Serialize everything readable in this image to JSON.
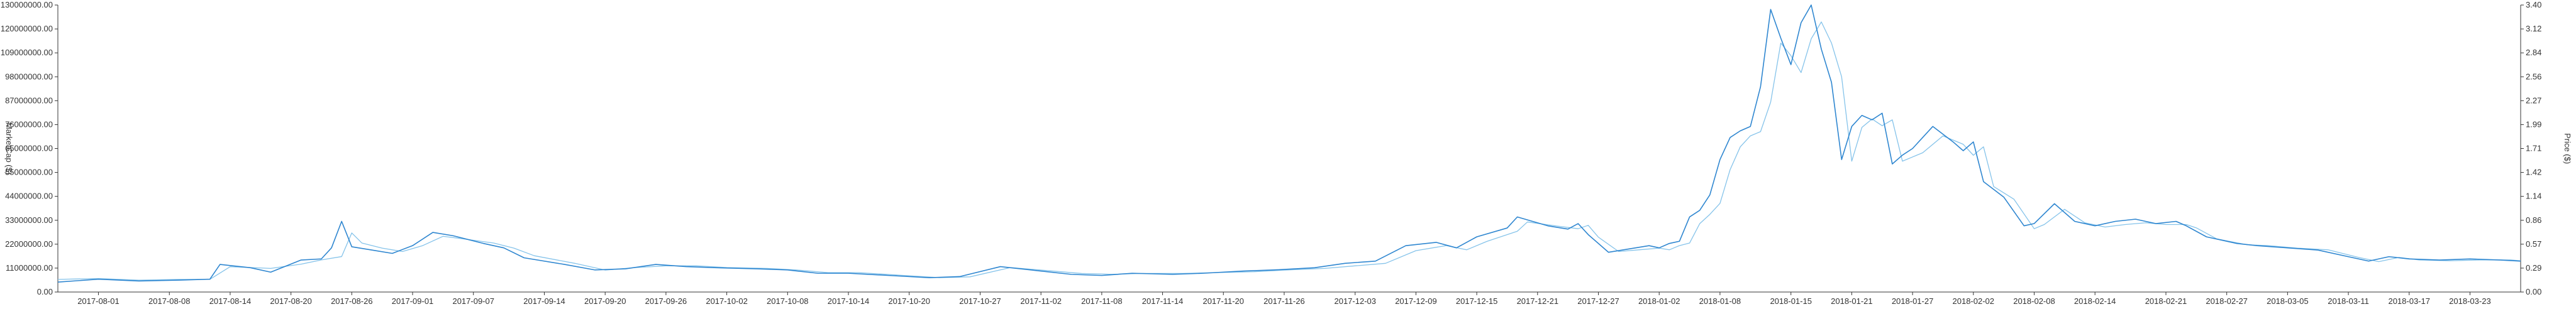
{
  "chart_data": {
    "type": "line",
    "x_start": "2017-07-28",
    "x_end": "2018-03-28",
    "xticks": [
      "2017-08-01",
      "2017-08-08",
      "2017-08-14",
      "2017-08-20",
      "2017-08-26",
      "2017-09-01",
      "2017-09-07",
      "2017-09-14",
      "2017-09-20",
      "2017-09-26",
      "2017-10-02",
      "2017-10-08",
      "2017-10-14",
      "2017-10-20",
      "2017-10-27",
      "2017-11-02",
      "2017-11-08",
      "2017-11-14",
      "2017-11-20",
      "2017-11-26",
      "2017-12-03",
      "2017-12-09",
      "2017-12-15",
      "2017-12-21",
      "2017-12-27",
      "2018-01-02",
      "2018-01-08",
      "2018-01-15",
      "2018-01-21",
      "2018-01-27",
      "2018-02-02",
      "2018-02-08",
      "2018-02-14",
      "2018-02-21",
      "2018-02-27",
      "2018-03-05",
      "2018-03-11",
      "2018-03-17",
      "2018-03-23"
    ],
    "y_left": {
      "label": "MarketCap ($)",
      "min": 0,
      "max": 130000000,
      "ticks": [
        "0.00",
        "11000000.00",
        "22000000.00",
        "33000000.00",
        "44000000.00",
        "55000000.00",
        "65000000.00",
        "76000000.00",
        "87000000.00",
        "98000000.00",
        "109000000.00",
        "120000000.00",
        "130000000.00"
      ]
    },
    "y_right": {
      "label": "Price ($)",
      "min": 0,
      "max": 3.4,
      "ticks": [
        "0.00",
        "0.29",
        "0.57",
        "0.86",
        "1.14",
        "1.42",
        "1.71",
        "1.99",
        "2.27",
        "2.56",
        "2.84",
        "3.12",
        "3.40"
      ]
    },
    "grid": false,
    "series": [
      {
        "axis": "left",
        "color": "#2e86d0",
        "points": [
          [
            "2017-07-28",
            4500000
          ],
          [
            "2017-08-01",
            5800000
          ],
          [
            "2017-08-05",
            5000000
          ],
          [
            "2017-08-09",
            5400000
          ],
          [
            "2017-08-12",
            5800000
          ],
          [
            "2017-08-13",
            12500000
          ],
          [
            "2017-08-16",
            11000000
          ],
          [
            "2017-08-18",
            9000000
          ],
          [
            "2017-08-21",
            14500000
          ],
          [
            "2017-08-23",
            15000000
          ],
          [
            "2017-08-24",
            20000000
          ],
          [
            "2017-08-25",
            32000000
          ],
          [
            "2017-08-26",
            20500000
          ],
          [
            "2017-08-28",
            19000000
          ],
          [
            "2017-08-30",
            17500000
          ],
          [
            "2017-09-01",
            21000000
          ],
          [
            "2017-09-03",
            27000000
          ],
          [
            "2017-09-05",
            25500000
          ],
          [
            "2017-09-08",
            22000000
          ],
          [
            "2017-09-10",
            20000000
          ],
          [
            "2017-09-12",
            15500000
          ],
          [
            "2017-09-16",
            12500000
          ],
          [
            "2017-09-19",
            10000000
          ],
          [
            "2017-09-22",
            10500000
          ],
          [
            "2017-09-25",
            12500000
          ],
          [
            "2017-09-28",
            11500000
          ],
          [
            "2017-10-01",
            11000000
          ],
          [
            "2017-10-05",
            10500000
          ],
          [
            "2017-10-08",
            10000000
          ],
          [
            "2017-10-11",
            8500000
          ],
          [
            "2017-10-14",
            8500000
          ],
          [
            "2017-10-18",
            7500000
          ],
          [
            "2017-10-22",
            6500000
          ],
          [
            "2017-10-25",
            7000000
          ],
          [
            "2017-10-29",
            11500000
          ],
          [
            "2017-11-01",
            10000000
          ],
          [
            "2017-11-05",
            8000000
          ],
          [
            "2017-11-08",
            7500000
          ],
          [
            "2017-11-11",
            8500000
          ],
          [
            "2017-11-15",
            8000000
          ],
          [
            "2017-11-18",
            8500000
          ],
          [
            "2017-11-22",
            9500000
          ],
          [
            "2017-11-25",
            10000000
          ],
          [
            "2017-11-29",
            11000000
          ],
          [
            "2017-12-02",
            13000000
          ],
          [
            "2017-12-05",
            14000000
          ],
          [
            "2017-12-08",
            21000000
          ],
          [
            "2017-12-11",
            22500000
          ],
          [
            "2017-12-13",
            20000000
          ],
          [
            "2017-12-15",
            25000000
          ],
          [
            "2017-12-18",
            29000000
          ],
          [
            "2017-12-19",
            34000000
          ],
          [
            "2017-12-22",
            30000000
          ],
          [
            "2017-12-24",
            28500000
          ],
          [
            "2017-12-25",
            31000000
          ],
          [
            "2017-12-26",
            26000000
          ],
          [
            "2017-12-28",
            18000000
          ],
          [
            "2017-12-30",
            19500000
          ],
          [
            "2018-01-01",
            21000000
          ],
          [
            "2018-01-02",
            20000000
          ],
          [
            "2018-01-03",
            22000000
          ],
          [
            "2018-01-04",
            23000000
          ],
          [
            "2018-01-05",
            34000000
          ],
          [
            "2018-01-06",
            37000000
          ],
          [
            "2018-01-07",
            44000000
          ],
          [
            "2018-01-08",
            60000000
          ],
          [
            "2018-01-09",
            70000000
          ],
          [
            "2018-01-10",
            73000000
          ],
          [
            "2018-01-11",
            75000000
          ],
          [
            "2018-01-12",
            93000000
          ],
          [
            "2018-01-13",
            128000000
          ],
          [
            "2018-01-14",
            115000000
          ],
          [
            "2018-01-15",
            103000000
          ],
          [
            "2018-01-16",
            122000000
          ],
          [
            "2018-01-17",
            130000000
          ],
          [
            "2018-01-18",
            110000000
          ],
          [
            "2018-01-19",
            95000000
          ],
          [
            "2018-01-20",
            60000000
          ],
          [
            "2018-01-21",
            75000000
          ],
          [
            "2018-01-22",
            80000000
          ],
          [
            "2018-01-23",
            78000000
          ],
          [
            "2018-01-24",
            81000000
          ],
          [
            "2018-01-25",
            58000000
          ],
          [
            "2018-01-26",
            62000000
          ],
          [
            "2018-01-27",
            65000000
          ],
          [
            "2018-01-29",
            75000000
          ],
          [
            "2018-01-31",
            68000000
          ],
          [
            "2018-02-01",
            64000000
          ],
          [
            "2018-02-02",
            68000000
          ],
          [
            "2018-02-03",
            50000000
          ],
          [
            "2018-02-05",
            43000000
          ],
          [
            "2018-02-07",
            30000000
          ],
          [
            "2018-02-08",
            31000000
          ],
          [
            "2018-02-10",
            40000000
          ],
          [
            "2018-02-12",
            32000000
          ],
          [
            "2018-02-14",
            30000000
          ],
          [
            "2018-02-16",
            32000000
          ],
          [
            "2018-02-18",
            33000000
          ],
          [
            "2018-02-20",
            31000000
          ],
          [
            "2018-02-22",
            32000000
          ],
          [
            "2018-02-23",
            30000000
          ],
          [
            "2018-02-25",
            25000000
          ],
          [
            "2018-02-28",
            22000000
          ],
          [
            "2018-03-02",
            21000000
          ],
          [
            "2018-03-05",
            20000000
          ],
          [
            "2018-03-08",
            19000000
          ],
          [
            "2018-03-11",
            16000000
          ],
          [
            "2018-03-13",
            14000000
          ],
          [
            "2018-03-15",
            16000000
          ],
          [
            "2018-03-17",
            15000000
          ],
          [
            "2018-03-20",
            14500000
          ],
          [
            "2018-03-23",
            15000000
          ],
          [
            "2018-03-26",
            14500000
          ],
          [
            "2018-03-28",
            14000000
          ]
        ]
      },
      {
        "axis": "right",
        "color": "#85c3ea",
        "points": [
          [
            "2017-07-28",
            0.15
          ],
          [
            "2017-08-01",
            0.16
          ],
          [
            "2017-08-05",
            0.14
          ],
          [
            "2017-08-09",
            0.15
          ],
          [
            "2017-08-12",
            0.15
          ],
          [
            "2017-08-14",
            0.3
          ],
          [
            "2017-08-16",
            0.29
          ],
          [
            "2017-08-18",
            0.28
          ],
          [
            "2017-08-21",
            0.33
          ],
          [
            "2017-08-23",
            0.38
          ],
          [
            "2017-08-25",
            0.42
          ],
          [
            "2017-08-26",
            0.7
          ],
          [
            "2017-08-27",
            0.58
          ],
          [
            "2017-08-29",
            0.52
          ],
          [
            "2017-08-31",
            0.48
          ],
          [
            "2017-09-02",
            0.55
          ],
          [
            "2017-09-04",
            0.66
          ],
          [
            "2017-09-06",
            0.63
          ],
          [
            "2017-09-09",
            0.58
          ],
          [
            "2017-09-11",
            0.52
          ],
          [
            "2017-09-13",
            0.43
          ],
          [
            "2017-09-17",
            0.34
          ],
          [
            "2017-09-20",
            0.26
          ],
          [
            "2017-09-23",
            0.29
          ],
          [
            "2017-09-26",
            0.31
          ],
          [
            "2017-09-29",
            0.31
          ],
          [
            "2017-10-02",
            0.29
          ],
          [
            "2017-10-06",
            0.28
          ],
          [
            "2017-10-09",
            0.26
          ],
          [
            "2017-10-12",
            0.23
          ],
          [
            "2017-10-15",
            0.23
          ],
          [
            "2017-10-19",
            0.2
          ],
          [
            "2017-10-23",
            0.17
          ],
          [
            "2017-10-26",
            0.18
          ],
          [
            "2017-10-30",
            0.29
          ],
          [
            "2017-11-02",
            0.26
          ],
          [
            "2017-11-06",
            0.22
          ],
          [
            "2017-11-09",
            0.21
          ],
          [
            "2017-11-12",
            0.22
          ],
          [
            "2017-11-16",
            0.22
          ],
          [
            "2017-11-19",
            0.23
          ],
          [
            "2017-11-23",
            0.24
          ],
          [
            "2017-11-26",
            0.26
          ],
          [
            "2017-11-30",
            0.28
          ],
          [
            "2017-12-03",
            0.31
          ],
          [
            "2017-12-06",
            0.34
          ],
          [
            "2017-12-09",
            0.49
          ],
          [
            "2017-12-12",
            0.55
          ],
          [
            "2017-12-14",
            0.5
          ],
          [
            "2017-12-16",
            0.6
          ],
          [
            "2017-12-19",
            0.72
          ],
          [
            "2017-12-20",
            0.83
          ],
          [
            "2017-12-23",
            0.78
          ],
          [
            "2017-12-25",
            0.75
          ],
          [
            "2017-12-26",
            0.79
          ],
          [
            "2017-12-27",
            0.65
          ],
          [
            "2017-12-29",
            0.48
          ],
          [
            "2017-12-31",
            0.5
          ],
          [
            "2018-01-02",
            0.52
          ],
          [
            "2018-01-03",
            0.5
          ],
          [
            "2018-01-04",
            0.55
          ],
          [
            "2018-01-05",
            0.58
          ],
          [
            "2018-01-06",
            0.81
          ],
          [
            "2018-01-07",
            0.92
          ],
          [
            "2018-01-08",
            1.05
          ],
          [
            "2018-01-09",
            1.45
          ],
          [
            "2018-01-10",
            1.72
          ],
          [
            "2018-01-11",
            1.85
          ],
          [
            "2018-01-12",
            1.9
          ],
          [
            "2018-01-13",
            2.25
          ],
          [
            "2018-01-14",
            2.95
          ],
          [
            "2018-01-15",
            2.8
          ],
          [
            "2018-01-16",
            2.6
          ],
          [
            "2018-01-17",
            3.0
          ],
          [
            "2018-01-18",
            3.2
          ],
          [
            "2018-01-19",
            2.95
          ],
          [
            "2018-01-20",
            2.55
          ],
          [
            "2018-01-21",
            1.55
          ],
          [
            "2018-01-22",
            1.95
          ],
          [
            "2018-01-23",
            2.05
          ],
          [
            "2018-01-24",
            1.97
          ],
          [
            "2018-01-25",
            2.04
          ],
          [
            "2018-01-26",
            1.55
          ],
          [
            "2018-01-27",
            1.6
          ],
          [
            "2018-01-28",
            1.65
          ],
          [
            "2018-01-30",
            1.85
          ],
          [
            "2018-02-01",
            1.75
          ],
          [
            "2018-02-02",
            1.62
          ],
          [
            "2018-02-03",
            1.72
          ],
          [
            "2018-02-04",
            1.25
          ],
          [
            "2018-02-06",
            1.1
          ],
          [
            "2018-02-08",
            0.75
          ],
          [
            "2018-02-09",
            0.8
          ],
          [
            "2018-02-11",
            0.98
          ],
          [
            "2018-02-13",
            0.82
          ],
          [
            "2018-02-15",
            0.77
          ],
          [
            "2018-02-17",
            0.8
          ],
          [
            "2018-02-19",
            0.82
          ],
          [
            "2018-02-21",
            0.8
          ],
          [
            "2018-02-23",
            0.8
          ],
          [
            "2018-02-24",
            0.76
          ],
          [
            "2018-02-26",
            0.63
          ],
          [
            "2018-03-01",
            0.56
          ],
          [
            "2018-03-03",
            0.55
          ],
          [
            "2018-03-06",
            0.52
          ],
          [
            "2018-03-09",
            0.5
          ],
          [
            "2018-03-12",
            0.41
          ],
          [
            "2018-03-14",
            0.36
          ],
          [
            "2018-03-16",
            0.41
          ],
          [
            "2018-03-18",
            0.38
          ],
          [
            "2018-03-21",
            0.37
          ],
          [
            "2018-03-24",
            0.38
          ],
          [
            "2018-03-27",
            0.38
          ],
          [
            "2018-03-28",
            0.37
          ]
        ]
      }
    ]
  }
}
